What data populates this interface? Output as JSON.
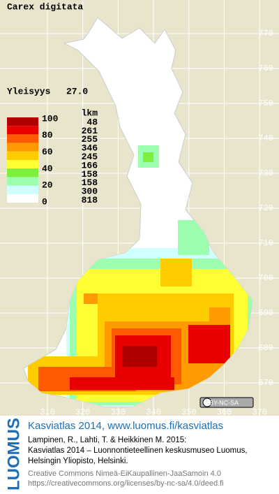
{
  "title": "Carex digitata",
  "frequency": {
    "label": "Yleisyys",
    "value": "27.0"
  },
  "legend": {
    "count_header": "lkm",
    "scale_labels": [
      "100",
      "80",
      "60",
      "40",
      "20",
      "0"
    ],
    "counts": [
      48,
      261,
      255,
      346,
      245,
      166,
      158,
      158,
      300,
      818
    ],
    "colors": [
      "#b00000",
      "#e80000",
      "#ff5a00",
      "#ff9a00",
      "#ffcc00",
      "#ffff33",
      "#7cf03c",
      "#9cffb0",
      "#d0ffff",
      "#ffffff"
    ]
  },
  "map": {
    "y_labels": [
      "770",
      "760",
      "750",
      "740",
      "730",
      "720",
      "710",
      "700",
      "690",
      "680",
      "670"
    ],
    "x_labels": [
      "310",
      "320",
      "330",
      "340",
      "350",
      "360",
      "370"
    ]
  },
  "license_badge": "BY-NC-SA",
  "footer": {
    "brand": "LUOMUS",
    "headline": "Kasviatlas 2014, www.luomus.fi/kasviatlas",
    "citation": [
      "Lampinen, R., Lahti, T. & Heikkinen M. 2015:",
      "Kasviatlas 2014 – Luonnontieteellinen keskusmuseo Luomus,",
      "Helsingin Yliopisto, Helsinki."
    ],
    "license": [
      "Creative Commons Nimeä-EiKaupallinen-JaaSamoin 4.0",
      "https://creativecommons.org/licenses/by-nc-sa/4.0/deed.fi"
    ]
  }
}
